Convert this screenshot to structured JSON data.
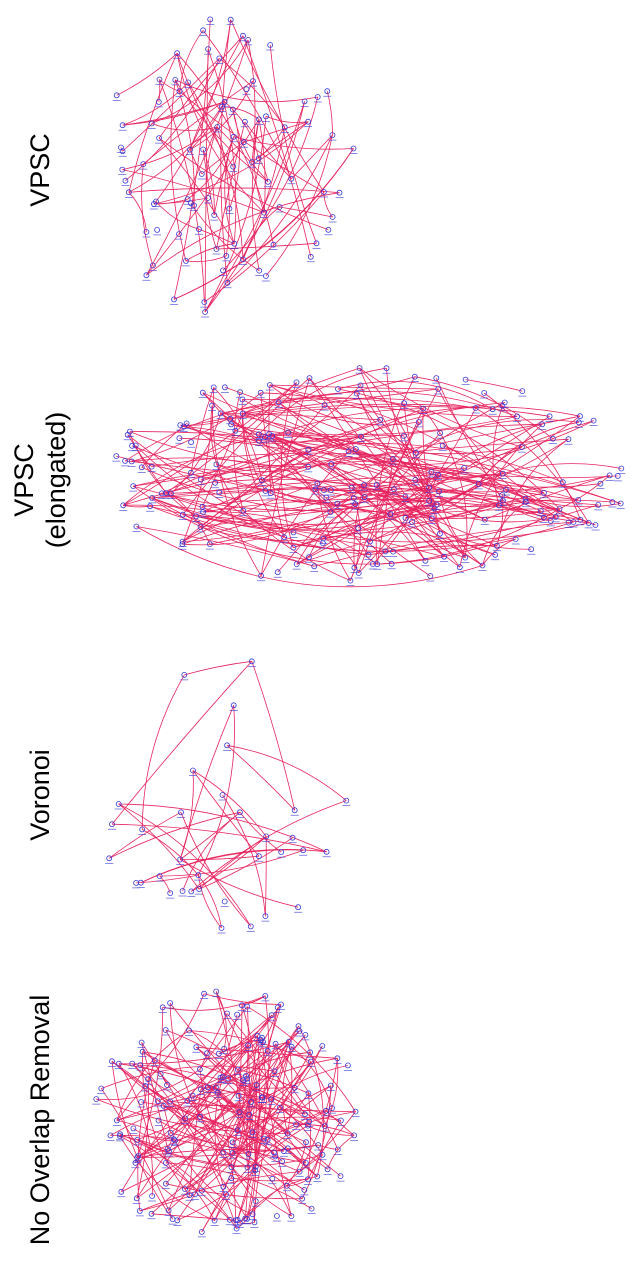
{
  "panels": [
    {
      "id": "vpsc",
      "label": "VPSC",
      "nodes": 85,
      "seed": 11,
      "curvy": 0.35
    },
    {
      "id": "vpsc-elongated",
      "label": "VPSC\n(elongated)",
      "nodes": 190,
      "seed": 23,
      "curvy": 0.45
    },
    {
      "id": "voronoi",
      "label": "Voronoi",
      "nodes": 34,
      "seed": 37,
      "curvy": 0.3
    },
    {
      "id": "no-overlap-removal",
      "label": "No Overlap Removal",
      "nodes": 170,
      "seed": 53,
      "curvy": 0.4
    }
  ],
  "colors": {
    "edge": "#e8245f",
    "node": "#3a3ad8",
    "label": "#000000",
    "background": "#ffffff"
  }
}
